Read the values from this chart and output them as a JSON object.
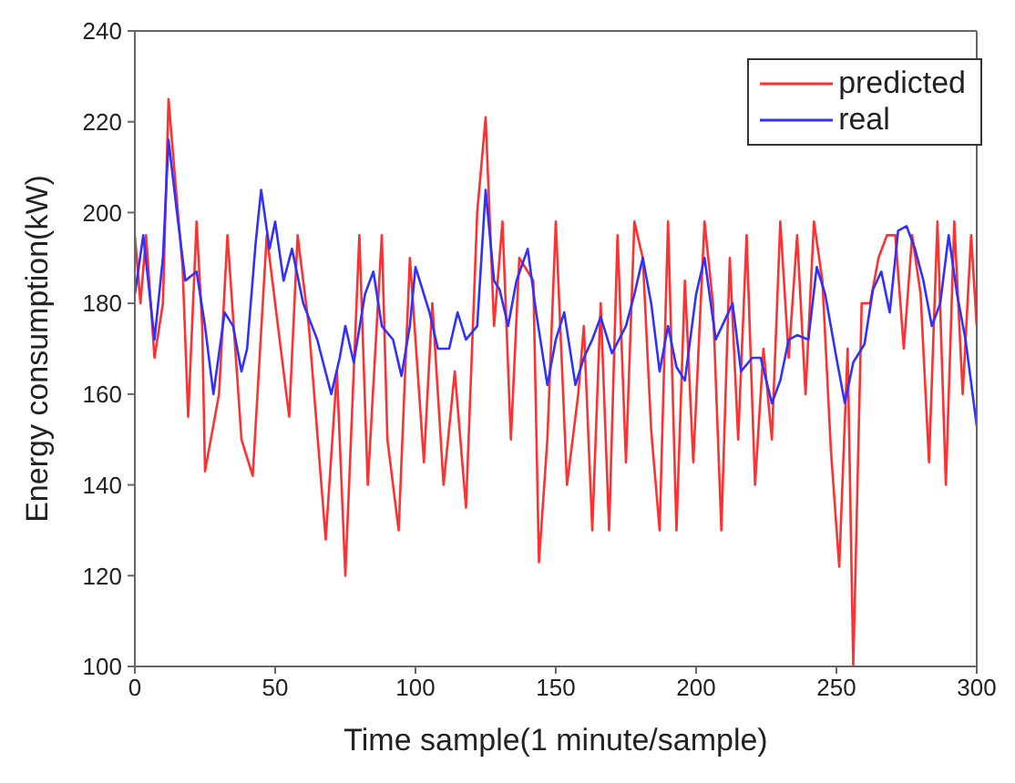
{
  "chart_data": {
    "type": "line",
    "xlabel": "Time sample(1 minute/sample)",
    "ylabel": "Energy consumption(kW)",
    "xlim": [
      0,
      300
    ],
    "xticks": [
      0,
      50,
      100,
      150,
      200,
      250,
      300
    ],
    "ylim": [
      100,
      240
    ],
    "yticks": [
      100,
      120,
      140,
      160,
      180,
      200,
      220,
      240
    ],
    "grid": false,
    "legend": "top right",
    "marker": "none",
    "line_style": "solid",
    "series": [
      {
        "name": "predicted",
        "color": "#ff3030",
        "x": [
          0,
          2,
          4,
          7,
          10,
          12,
          14,
          17,
          19,
          22,
          24,
          25,
          30,
          33,
          38,
          42,
          47,
          55,
          58,
          62,
          68,
          72,
          75,
          80,
          83,
          88,
          90,
          94,
          98,
          103,
          106,
          110,
          114,
          118,
          122,
          125,
          128,
          131,
          134,
          137,
          142,
          144,
          147,
          150,
          154,
          158,
          160,
          163,
          166,
          169,
          172,
          175,
          178,
          181,
          184,
          187,
          190,
          193,
          196,
          199,
          203,
          206,
          209,
          212,
          215,
          218,
          221,
          224,
          227,
          230,
          233,
          236,
          239,
          242,
          245,
          248,
          251,
          254,
          256,
          259,
          262,
          265,
          268,
          271,
          274,
          277,
          280,
          283,
          286,
          289,
          292,
          295,
          298,
          300
        ],
        "values": [
          195,
          180,
          195,
          168,
          180,
          225,
          210,
          188,
          155,
          198,
          175,
          143,
          160,
          195,
          150,
          142,
          195,
          155,
          195,
          175,
          128,
          165,
          120,
          195,
          140,
          195,
          150,
          130,
          190,
          145,
          180,
          140,
          165,
          135,
          200,
          221,
          175,
          198,
          150,
          190,
          185,
          123,
          150,
          198,
          140,
          160,
          175,
          130,
          180,
          130,
          195,
          145,
          198,
          190,
          152,
          130,
          198,
          130,
          185,
          145,
          198,
          180,
          130,
          190,
          150,
          195,
          140,
          170,
          150,
          198,
          168,
          195,
          160,
          198,
          185,
          148,
          122,
          170,
          100,
          180,
          180,
          190,
          195,
          195,
          170,
          195,
          182,
          145,
          198,
          140,
          198,
          160,
          195,
          175
        ]
      },
      {
        "name": "real",
        "color": "#3030ff",
        "x": [
          0,
          3,
          7,
          10,
          12,
          15,
          18,
          22,
          25,
          28,
          32,
          35,
          38,
          40,
          43,
          45,
          48,
          50,
          53,
          56,
          60,
          65,
          70,
          73,
          75,
          78,
          82,
          85,
          88,
          92,
          95,
          98,
          100,
          105,
          108,
          112,
          115,
          118,
          122,
          125,
          128,
          130,
          133,
          136,
          140,
          143,
          147,
          150,
          153,
          157,
          160,
          163,
          166,
          170,
          175,
          178,
          181,
          184,
          187,
          190,
          193,
          196,
          200,
          203,
          207,
          210,
          213,
          216,
          220,
          223,
          227,
          230,
          233,
          236,
          240,
          243,
          246,
          250,
          253,
          256,
          260,
          263,
          266,
          269,
          272,
          275,
          278,
          281,
          284,
          287,
          290,
          293,
          296,
          300
        ],
        "values": [
          182,
          195,
          172,
          190,
          216,
          200,
          185,
          187,
          175,
          160,
          178,
          175,
          165,
          170,
          193,
          205,
          192,
          198,
          185,
          192,
          180,
          172,
          160,
          168,
          175,
          167,
          182,
          187,
          175,
          172,
          164,
          175,
          188,
          178,
          170,
          170,
          178,
          172,
          175,
          205,
          185,
          183,
          175,
          185,
          192,
          178,
          162,
          172,
          178,
          162,
          168,
          172,
          177,
          169,
          175,
          182,
          190,
          180,
          165,
          175,
          166,
          163,
          182,
          190,
          172,
          176,
          180,
          165,
          168,
          168,
          158,
          163,
          172,
          173,
          172,
          188,
          182,
          168,
          158,
          167,
          171,
          183,
          187,
          178,
          196,
          197,
          192,
          185,
          175,
          180,
          195,
          182,
          172,
          153
        ]
      }
    ]
  }
}
